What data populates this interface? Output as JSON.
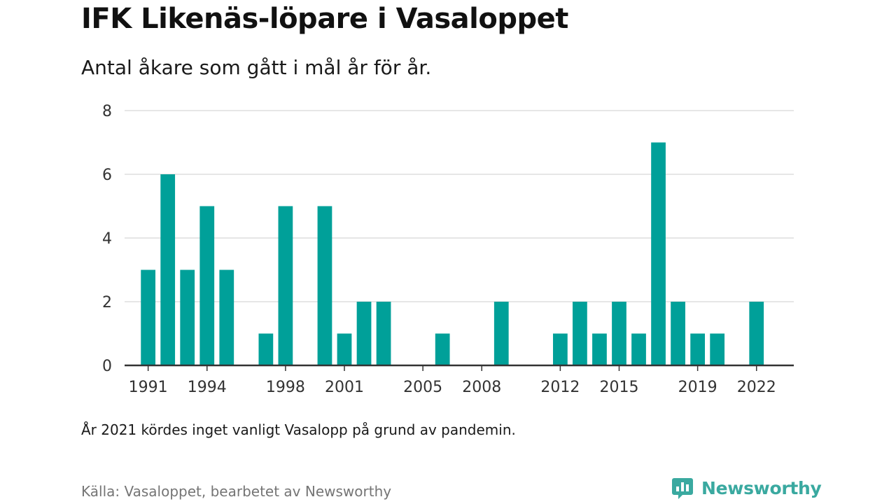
{
  "title": "IFK Likenäs-löpare i Vasaloppet",
  "subtitle": "Antal åkare som gått i mål år för år.",
  "note": "År 2021 kördes inget vanligt Vasalopp på grund av pandemin.",
  "source": "Källa: Vasaloppet, bearbetet av Newsworthy",
  "brand": {
    "name": "Newsworthy",
    "icon": "newsworthy-logo-icon"
  },
  "colors": {
    "bar": "#00a099",
    "grid": "#dddddd",
    "axis": "#333333",
    "text": "#333333",
    "brand": "#3aa9a0"
  },
  "chart_data": {
    "type": "bar",
    "title": "",
    "xlabel": "",
    "ylabel": "",
    "ylim": [
      0,
      8
    ],
    "yticks": [
      0,
      2,
      4,
      6,
      8
    ],
    "xlim": [
      1989.8,
      2023.9
    ],
    "xticks": [
      1991,
      1994,
      1998,
      2001,
      2005,
      2008,
      2012,
      2015,
      2019,
      2022
    ],
    "grid": true,
    "x": [
      1991,
      1992,
      1993,
      1994,
      1995,
      1997,
      1998,
      2000,
      2001,
      2002,
      2003,
      2006,
      2009,
      2012,
      2013,
      2014,
      2015,
      2016,
      2017,
      2018,
      2019,
      2020,
      2022
    ],
    "values": [
      3,
      6,
      3,
      5,
      3,
      1,
      5,
      5,
      1,
      2,
      2,
      1,
      2,
      1,
      2,
      1,
      2,
      1,
      7,
      2,
      1,
      1,
      2
    ]
  }
}
